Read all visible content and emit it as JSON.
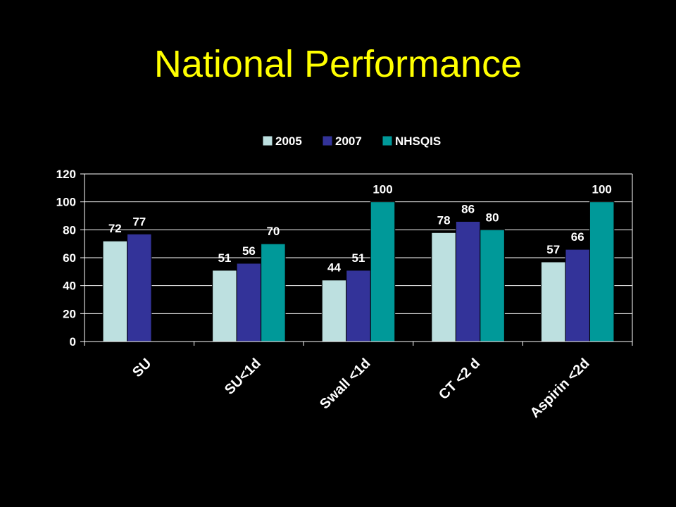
{
  "slide": {
    "title": "National Performance",
    "title_color": "#FFFF00",
    "background": "#000000"
  },
  "chart_data": {
    "type": "bar",
    "title": "",
    "xlabel": "",
    "ylabel": "",
    "categories": [
      "SU",
      "SU<1d",
      "Swall <1d",
      "CT <2 d",
      "Aspirin <2d"
    ],
    "series": [
      {
        "name": "2005",
        "color": "#BDE0E0",
        "values": [
          72,
          51,
          44,
          78,
          57
        ]
      },
      {
        "name": "2007",
        "color": "#333399",
        "values": [
          77,
          56,
          51,
          86,
          66
        ]
      },
      {
        "name": "NHSQIS",
        "color": "#009999",
        "values": [
          null,
          70,
          100,
          80,
          100
        ]
      }
    ],
    "ylim": [
      0,
      120
    ],
    "yticks": [
      0,
      20,
      40,
      60,
      80,
      100,
      120
    ],
    "grid": true,
    "legend": "top",
    "text_color": "#FFFFFF",
    "axis_color": "#FFFFFF"
  }
}
